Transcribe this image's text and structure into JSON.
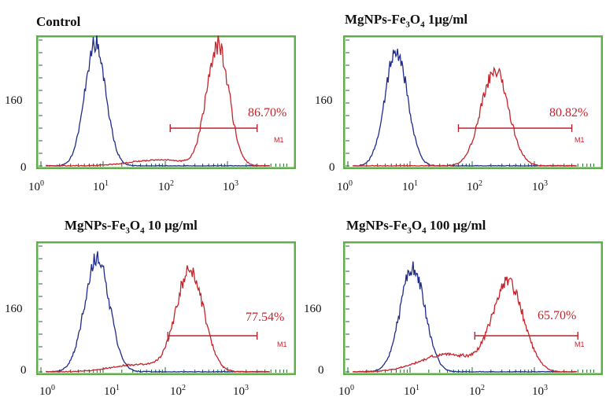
{
  "chart_data": [
    {
      "type": "line",
      "title": "Control",
      "title_main": "Control",
      "title_sub": "",
      "title_rest": "",
      "xscale": "log",
      "xlim": [
        1,
        10000
      ],
      "ylim": [
        0,
        250
      ],
      "x_ticks": [
        1,
        10,
        100,
        1000
      ],
      "y_ticks": [
        0,
        160
      ],
      "gate": {
        "name": "M1",
        "x_range": [
          120,
          3000
        ],
        "percent": "86.70%"
      },
      "series": [
        {
          "color": "#1f2c8a",
          "peaks": [
            {
              "x": 7.5,
              "y": 245,
              "width": 0.17
            }
          ]
        },
        {
          "color": "#c8232a",
          "peaks": [
            {
              "x": 700,
              "y": 240,
              "width": 0.18
            },
            {
              "x": 80,
              "y": 12,
              "width": 0.45
            }
          ]
        }
      ]
    },
    {
      "type": "line",
      "title": "MgNPs-Fe3O4 1μg/ml",
      "title_main": "MgNPs-Fe",
      "title_sub": "3",
      "title_rest": "O4 1μg/ml",
      "title_sub2": "4",
      "xscale": "log",
      "xlim": [
        1,
        10000
      ],
      "ylim": [
        0,
        250
      ],
      "x_ticks": [
        1,
        10,
        100,
        1000
      ],
      "y_ticks": [
        0,
        160
      ],
      "gate": {
        "name": "M1",
        "x_range": [
          60,
          4000
        ],
        "percent": "80.82%"
      },
      "series": [
        {
          "color": "#1f2c8a",
          "peaks": [
            {
              "x": 6,
              "y": 230,
              "width": 0.18
            }
          ]
        },
        {
          "color": "#c8232a",
          "peaks": [
            {
              "x": 230,
              "y": 190,
              "width": 0.22
            }
          ]
        }
      ]
    },
    {
      "type": "line",
      "title": "MgNPs-Fe3O4 10 μg/ml",
      "title_main": "MgNPs-Fe",
      "title_sub": "3",
      "title_rest": "O4 10 μg/ml",
      "title_sub2": "4",
      "xscale": "log",
      "xlim": [
        1,
        10000
      ],
      "ylim": [
        0,
        250
      ],
      "x_ticks": [
        1,
        10,
        100,
        1000
      ],
      "y_ticks": [
        0,
        160
      ],
      "gate": {
        "name": "M1",
        "x_range": [
          110,
          3000
        ],
        "percent": "77.54%"
      },
      "series": [
        {
          "color": "#1f2c8a",
          "peaks": [
            {
              "x": 8,
              "y": 225,
              "width": 0.2
            }
          ]
        },
        {
          "color": "#c8232a",
          "peaks": [
            {
              "x": 250,
              "y": 200,
              "width": 0.22
            },
            {
              "x": 40,
              "y": 15,
              "width": 0.45
            }
          ]
        }
      ]
    },
    {
      "type": "line",
      "title": "MgNPs-Fe3O4 100 μg/ml",
      "title_main": "MgNPs-Fe",
      "title_sub": "3",
      "title_rest": "O4 100 μg/ml",
      "title_sub2": "4",
      "xscale": "log",
      "xlim": [
        1,
        10000
      ],
      "ylim": [
        0,
        250
      ],
      "x_ticks": [
        1,
        10,
        100,
        1000
      ],
      "y_ticks": [
        0,
        160
      ],
      "gate": {
        "name": "M1",
        "x_range": [
          110,
          5000
        ],
        "percent": "65.70%"
      },
      "series": [
        {
          "color": "#1f2c8a",
          "peaks": [
            {
              "x": 11,
              "y": 205,
              "width": 0.2
            }
          ]
        },
        {
          "color": "#c8232a",
          "peaks": [
            {
              "x": 380,
              "y": 175,
              "width": 0.25
            },
            {
              "x": 40,
              "y": 35,
              "width": 0.45
            }
          ]
        }
      ]
    }
  ]
}
